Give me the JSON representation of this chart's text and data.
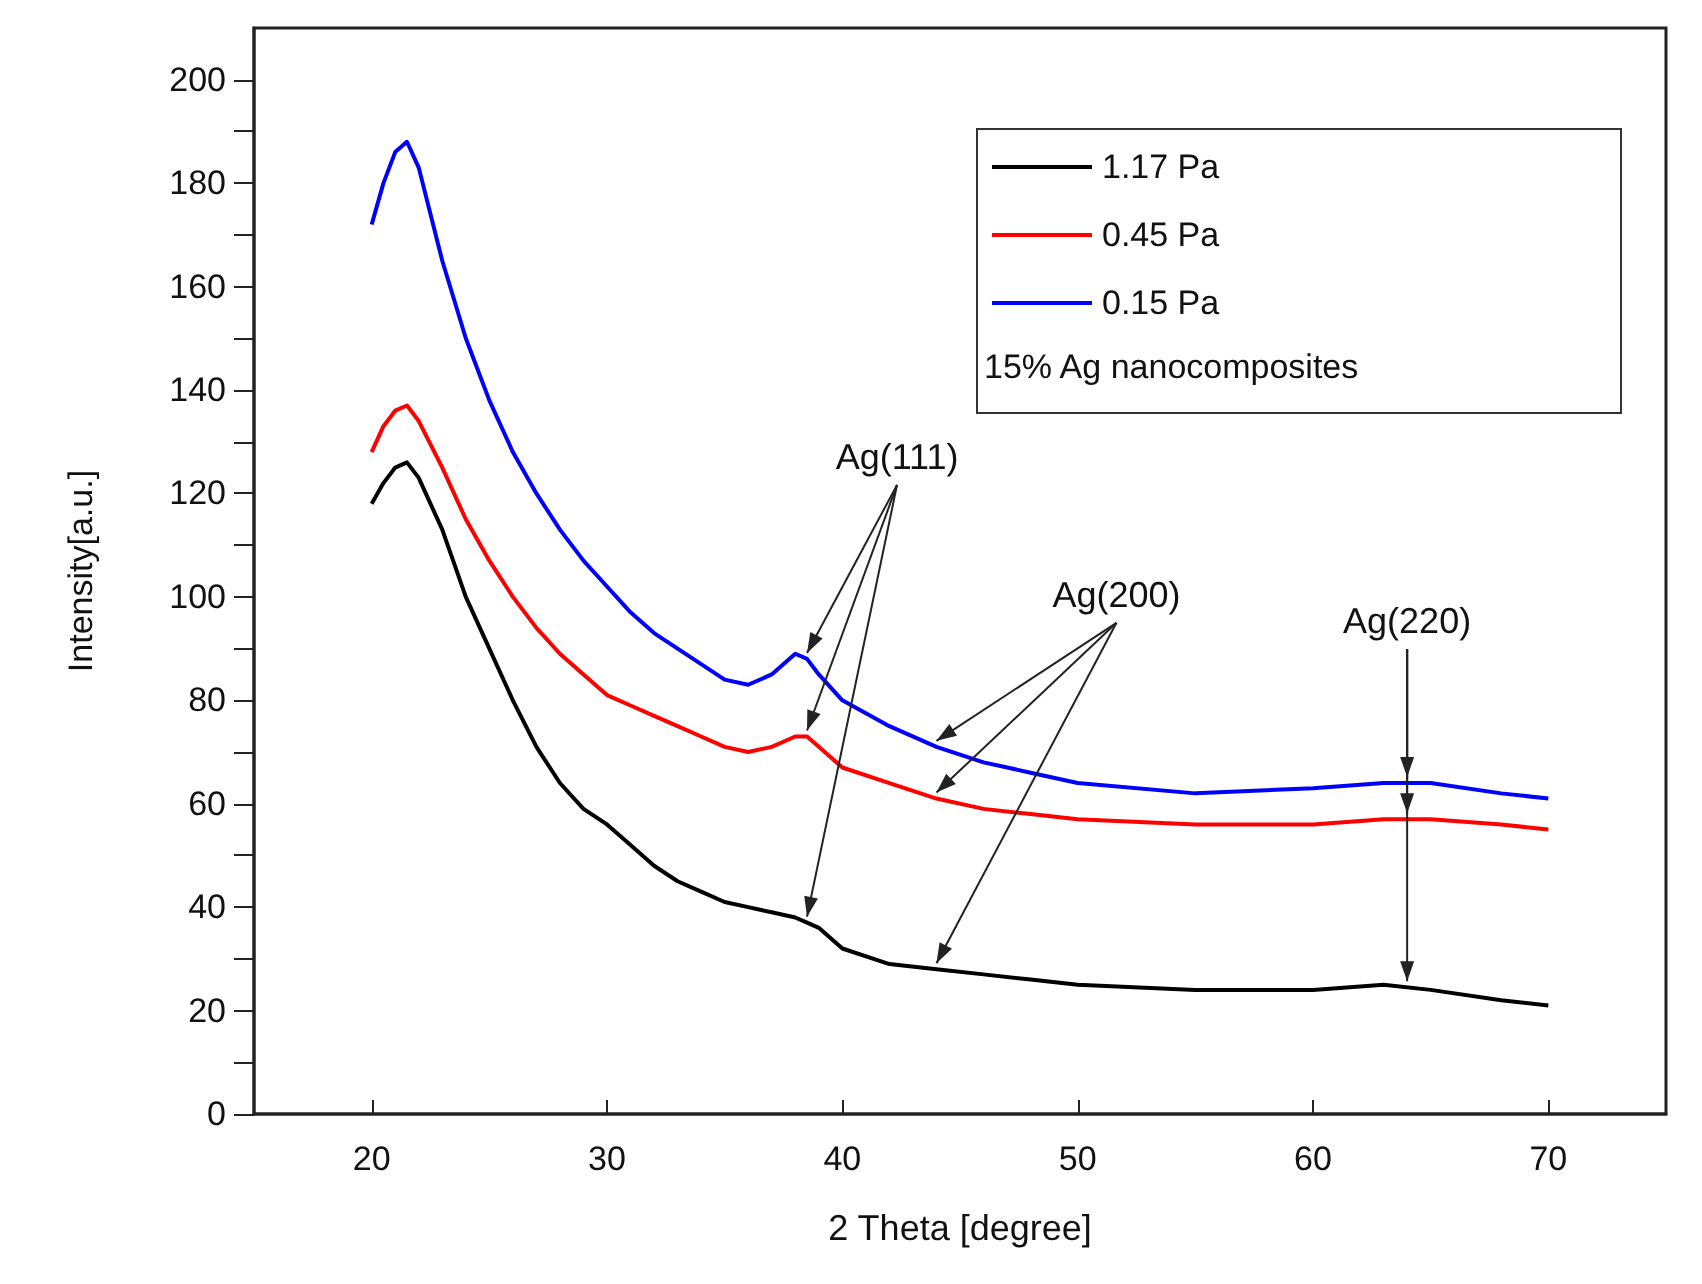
{
  "chart_data": {
    "type": "line",
    "xlabel": "2 Theta [degree]",
    "ylabel": "Intensity[a.u.]",
    "legend_title": "15% Ag nanocomposites",
    "legend": "top right",
    "grid": false,
    "marker": "none",
    "line_style": "solid",
    "xlim": [
      15,
      75
    ],
    "xticks": [
      20,
      30,
      40,
      50,
      60,
      70
    ],
    "ylim": [
      0,
      210
    ],
    "yticks": [
      0,
      20,
      40,
      60,
      80,
      100,
      120,
      140,
      160,
      180,
      200
    ],
    "x": [
      20,
      20.5,
      21,
      21.5,
      22,
      23,
      24,
      25,
      26,
      27,
      28,
      29,
      30,
      31,
      32,
      33,
      34,
      35,
      36,
      37,
      38,
      38.5,
      39,
      40,
      42,
      44,
      46,
      48,
      50,
      55,
      60,
      63,
      65,
      68,
      70
    ],
    "series": [
      {
        "name": "1.17 Pa",
        "color": "#000000",
        "values": [
          118,
          122,
          125,
          126,
          123,
          113,
          100,
          90,
          80,
          71,
          64,
          59,
          56,
          52,
          48,
          45,
          43,
          41,
          40,
          39,
          38,
          37,
          36,
          32,
          29,
          28,
          27,
          26,
          25,
          24,
          24,
          25,
          24,
          22,
          21
        ]
      },
      {
        "name": "0.45 Pa",
        "color": "#ff0000",
        "values": [
          128,
          133,
          136,
          137,
          134,
          125,
          115,
          107,
          100,
          94,
          89,
          85,
          81,
          79,
          77,
          75,
          73,
          71,
          70,
          71,
          73,
          73,
          71,
          67,
          64,
          61,
          59,
          58,
          57,
          56,
          56,
          57,
          57,
          56,
          55
        ]
      },
      {
        "name": "0.15 Pa",
        "color": "#0000ff",
        "values": [
          172,
          180,
          186,
          188,
          183,
          165,
          150,
          138,
          128,
          120,
          113,
          107,
          102,
          97,
          93,
          90,
          87,
          84,
          83,
          85,
          89,
          88,
          85,
          80,
          75,
          71,
          68,
          66,
          64,
          62,
          63,
          64,
          64,
          62,
          61
        ]
      }
    ],
    "annotations": [
      {
        "text": "Ag(111)",
        "x": 38.5,
        "y": 88
      },
      {
        "text": "Ag(200)",
        "x": 44,
        "y": 71
      },
      {
        "text": "Ag(220)",
        "x": 64,
        "y": 64
      }
    ]
  }
}
